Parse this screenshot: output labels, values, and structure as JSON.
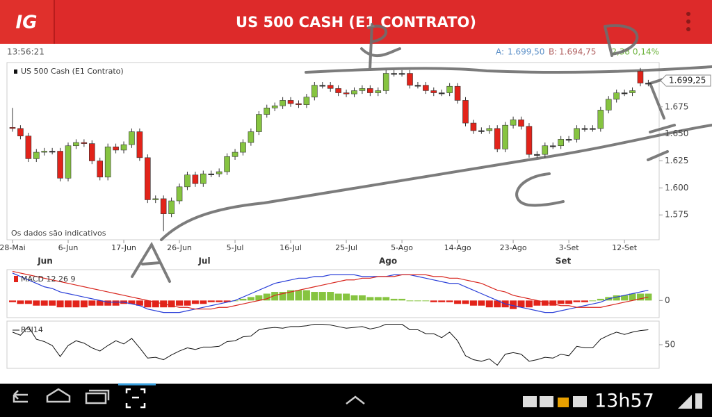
{
  "header": {
    "logo": "IG",
    "title": "US 500 CASH (E1 CONTRATO)"
  },
  "info": {
    "time": "13:56:21",
    "ask_label": "A:",
    "ask": "1.699,50",
    "bid_label": "B:",
    "bid": "1.694,75",
    "change": "2,38 0,14%"
  },
  "statusbar": {
    "clock": "13h57"
  },
  "chart_data": [
    {
      "type": "candlestick",
      "legend": "US 500 Cash (E1 Contrato)",
      "note": "Os dados são indicativos",
      "categories": [
        "28-Mai",
        null,
        null,
        null,
        null,
        null,
        null,
        "6-Jun",
        null,
        null,
        null,
        null,
        null,
        null,
        "17-Jun",
        null,
        null,
        null,
        null,
        null,
        null,
        "26-Jun",
        null,
        null,
        null,
        null,
        null,
        null,
        "5-Jul",
        null,
        null,
        null,
        null,
        null,
        null,
        "16-Jul",
        null,
        null,
        null,
        null,
        null,
        null,
        "25-Jul",
        null,
        null,
        null,
        null,
        null,
        null,
        "5-Ago",
        null,
        null,
        null,
        null,
        null,
        null,
        "14-Ago",
        null,
        null,
        null,
        null,
        null,
        null,
        "23-Ago",
        null,
        null,
        null,
        null,
        null,
        null,
        "3-Set",
        null,
        null,
        null,
        null,
        null,
        null,
        "12-Set",
        null,
        null,
        null
      ],
      "months": [
        "Jun",
        "Jul",
        "Ago",
        "Set"
      ],
      "open": [
        1656,
        1655,
        1648,
        1627,
        1633,
        1634,
        1634,
        1609,
        1639,
        1642,
        1641,
        1625,
        1610,
        1638,
        1635,
        1640,
        1652,
        1628,
        1589,
        1590,
        1576,
        1588,
        1601,
        1612,
        1604,
        1613,
        1613,
        1615,
        1629,
        1633,
        1642,
        1652,
        1668,
        1674,
        1676,
        1681,
        1678,
        1677,
        1684,
        1695,
        1695,
        1692,
        1688,
        1687,
        1690,
        1692,
        1688,
        1690,
        1706,
        1706,
        1706,
        1695,
        1695,
        1690,
        1688,
        1688,
        1694,
        1681,
        1660,
        1653,
        1653,
        1655,
        1636,
        1658,
        1663,
        1657,
        1631,
        1631,
        1639,
        1639,
        1645,
        1645,
        1655,
        1655,
        1655,
        1672,
        1682,
        1688,
        1688,
        1708,
        1697
      ],
      "high": [
        1674,
        1658,
        1651,
        1636,
        1637,
        1637,
        1637,
        1642,
        1645,
        1645,
        1644,
        1628,
        1641,
        1641,
        1643,
        1655,
        1655,
        1631,
        1593,
        1593,
        1591,
        1604,
        1615,
        1615,
        1616,
        1616,
        1618,
        1632,
        1636,
        1645,
        1655,
        1671,
        1677,
        1679,
        1684,
        1684,
        1681,
        1687,
        1698,
        1698,
        1698,
        1695,
        1691,
        1693,
        1695,
        1695,
        1693,
        1709,
        1709,
        1709,
        1709,
        1698,
        1698,
        1693,
        1691,
        1697,
        1697,
        1684,
        1663,
        1656,
        1658,
        1658,
        1661,
        1666,
        1666,
        1660,
        1634,
        1642,
        1642,
        1648,
        1648,
        1658,
        1658,
        1658,
        1675,
        1685,
        1691,
        1691,
        1693,
        1711,
        1700
      ],
      "low": [
        1652,
        1645,
        1624,
        1624,
        1630,
        1631,
        1606,
        1606,
        1636,
        1638,
        1622,
        1607,
        1607,
        1632,
        1632,
        1637,
        1625,
        1586,
        1586,
        1560,
        1573,
        1585,
        1598,
        1601,
        1601,
        1610,
        1610,
        1612,
        1626,
        1630,
        1639,
        1649,
        1665,
        1671,
        1673,
        1675,
        1674,
        1674,
        1681,
        1692,
        1689,
        1685,
        1684,
        1684,
        1687,
        1685,
        1685,
        1687,
        1703,
        1703,
        1692,
        1692,
        1687,
        1685,
        1685,
        1685,
        1678,
        1657,
        1650,
        1650,
        1650,
        1633,
        1633,
        1655,
        1654,
        1628,
        1628,
        1628,
        1636,
        1636,
        1642,
        1642,
        1652,
        1652,
        1652,
        1669,
        1679,
        1685,
        1685,
        1694,
        1694
      ],
      "close": [
        1655,
        1648,
        1627,
        1633,
        1634,
        1634,
        1609,
        1639,
        1642,
        1641,
        1625,
        1610,
        1638,
        1635,
        1640,
        1652,
        1628,
        1589,
        1590,
        1576,
        1588,
        1601,
        1612,
        1604,
        1613,
        1613,
        1615,
        1629,
        1633,
        1642,
        1652,
        1668,
        1674,
        1676,
        1681,
        1678,
        1677,
        1684,
        1695,
        1695,
        1692,
        1688,
        1687,
        1690,
        1692,
        1688,
        1690,
        1706,
        1706,
        1706,
        1695,
        1695,
        1690,
        1688,
        1688,
        1694,
        1681,
        1660,
        1653,
        1653,
        1655,
        1636,
        1658,
        1663,
        1657,
        1631,
        1631,
        1639,
        1639,
        1645,
        1645,
        1655,
        1655,
        1655,
        1672,
        1682,
        1688,
        1688,
        1690,
        1697,
        1697
      ],
      "up_color": "#86c440",
      "down_color": "#e2231a",
      "ylim": [
        1552,
        1716
      ],
      "yticks": [
        {
          "value": 1575,
          "label": "1.575"
        },
        {
          "value": 1600,
          "label": "1.600"
        },
        {
          "value": 1625,
          "label": "1.625"
        },
        {
          "value": 1650,
          "label": "1.650"
        },
        {
          "value": 1675,
          "label": "1.675"
        }
      ],
      "last_price": {
        "value": 1699.25,
        "label": "1.699,25"
      }
    },
    {
      "type": "macd",
      "legend": "MACD 12 26 9",
      "legend_color": "#e2231a",
      "ylim": [
        -10,
        18
      ],
      "yticks": [
        0
      ],
      "histogram": {
        "positive_color": "#86c440",
        "negative_color": "#e2231a",
        "values": [
          -1,
          -2,
          -2,
          -3,
          -3,
          -3,
          -4,
          -4,
          -4,
          -4,
          -3,
          -3,
          -3,
          -3,
          -2,
          -2,
          -3,
          -4,
          -4,
          -4,
          -4,
          -3,
          -3,
          -2,
          -2,
          -1,
          -1,
          -1,
          0,
          1,
          2,
          3,
          4,
          5,
          5,
          6,
          6,
          6,
          5,
          5,
          5,
          4,
          4,
          3,
          3,
          2,
          2,
          2,
          1,
          1,
          0,
          0,
          0,
          -1,
          -1,
          -1,
          -2,
          -2,
          -3,
          -3,
          -4,
          -4,
          -4,
          -5,
          -4,
          -4,
          -3,
          -3,
          -3,
          -2,
          -2,
          -1,
          -1,
          0,
          1,
          2,
          3,
          3,
          4,
          4,
          4
        ]
      },
      "series": [
        {
          "color": "#2a3fd8",
          "values": [
            16,
            14,
            12,
            10,
            8,
            7,
            5,
            4,
            3,
            2,
            1,
            0,
            -1,
            -1,
            -1,
            -2,
            -3,
            -5,
            -6,
            -7,
            -7,
            -7,
            -6,
            -5,
            -4,
            -3,
            -2,
            -1,
            0,
            2,
            4,
            6,
            8,
            10,
            11,
            12,
            13,
            13,
            14,
            14,
            15,
            15,
            15,
            15,
            14,
            14,
            14,
            14,
            15,
            15,
            15,
            14,
            13,
            12,
            11,
            10,
            10,
            8,
            6,
            4,
            2,
            0,
            -2,
            -3,
            -4,
            -5,
            -6,
            -7,
            -7,
            -6,
            -5,
            -4,
            -3,
            -2,
            -1,
            1,
            2,
            3,
            4,
            5,
            6
          ]
        },
        {
          "color": "#d8261e",
          "values": [
            17,
            16,
            15,
            14,
            13,
            12,
            11,
            10,
            9,
            8,
            7,
            6,
            5,
            4,
            3,
            2,
            1,
            0,
            -1,
            -2,
            -3,
            -4,
            -4,
            -5,
            -5,
            -5,
            -4,
            -4,
            -3,
            -2,
            -1,
            0,
            1,
            3,
            4,
            5,
            6,
            7,
            8,
            9,
            10,
            11,
            12,
            12,
            13,
            13,
            14,
            14,
            14,
            15,
            15,
            15,
            15,
            14,
            14,
            13,
            13,
            12,
            11,
            10,
            8,
            6,
            5,
            3,
            2,
            1,
            0,
            -1,
            -2,
            -3,
            -3,
            -4,
            -4,
            -4,
            -4,
            -3,
            -2,
            -1,
            0,
            1,
            2
          ]
        }
      ]
    },
    {
      "type": "line",
      "legend": "RSI14",
      "color": "#111111",
      "ylim": [
        20,
        80
      ],
      "yticks": [
        50
      ],
      "values": [
        66,
        62,
        73,
        57,
        54,
        49,
        35,
        49,
        55,
        52,
        46,
        42,
        49,
        55,
        51,
        58,
        46,
        33,
        34,
        31,
        37,
        42,
        46,
        44,
        47,
        47,
        48,
        54,
        55,
        60,
        61,
        69,
        71,
        72,
        71,
        73,
        73,
        74,
        76,
        76,
        75,
        73,
        71,
        72,
        73,
        70,
        72,
        76,
        76,
        76,
        69,
        69,
        64,
        64,
        59,
        66,
        55,
        36,
        31,
        29,
        32,
        24,
        38,
        40,
        38,
        29,
        31,
        34,
        33,
        38,
        36,
        48,
        46,
        46,
        57,
        62,
        66,
        63,
        66,
        68,
        69
      ]
    }
  ]
}
